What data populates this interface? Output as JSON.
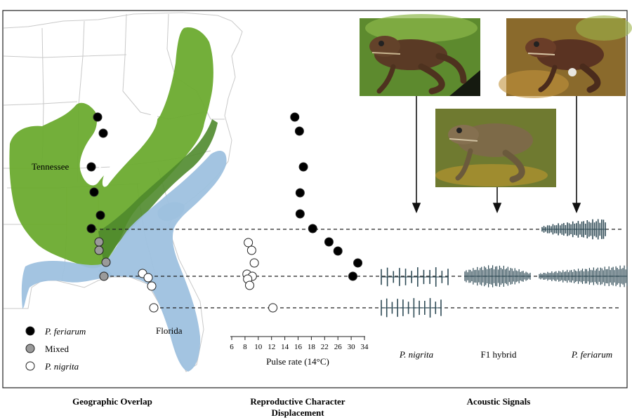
{
  "map": {
    "region_label_tennessee": "Tennessee",
    "region_label_florida": "Florida"
  },
  "legend": [
    {
      "label": "P. feriarum",
      "italic": true,
      "fill": "#000000"
    },
    {
      "label": "Mixed",
      "italic": false,
      "fill": "#9a9a9a"
    },
    {
      "label": "P. nigrita",
      "italic": true,
      "fill": "#ffffff"
    }
  ],
  "chart_data": {
    "type": "scatter",
    "title": "Reproductive Character Displacement",
    "xlabel": "Pulse rate (14°C)",
    "ylabel": "",
    "xlim": [
      6,
      34
    ],
    "x_ticks": [
      "6",
      "8",
      "10",
      "12",
      "14",
      "16",
      "18",
      "22",
      "26",
      "30",
      "34"
    ],
    "series": [
      {
        "name": "P. feriarum",
        "fill": "#000000",
        "x": [
          15.5,
          16.2,
          16.8,
          16.3,
          16.3,
          18.4,
          23.3,
          26.0,
          32.0,
          30.5
        ]
      },
      {
        "name": "P. nigrita",
        "fill": "#ffffff",
        "x": [
          8.5,
          9.0,
          9.4,
          8.3,
          9.1,
          8.4,
          8.7,
          12.2
        ]
      }
    ]
  },
  "acoustic": {
    "labels": [
      {
        "text": "P. nigrita",
        "italic": true
      },
      {
        "text": "F1 hybrid",
        "italic": false
      },
      {
        "text": "P. feriarum",
        "italic": true
      }
    ]
  },
  "colors": {
    "feriarum_range": "#6cab2f",
    "overlap_range": "#4f8a2c",
    "nigrita_range": "#9ec1df",
    "state_lines": "#c9c9c9",
    "waveform": "#2e4a55"
  },
  "panel_titles": {
    "geographic": "Geographic Overlap",
    "reproductive_line1": "Reproductive Character",
    "reproductive_line2": "Displacement",
    "acoustic": "Acoustic Signals"
  }
}
